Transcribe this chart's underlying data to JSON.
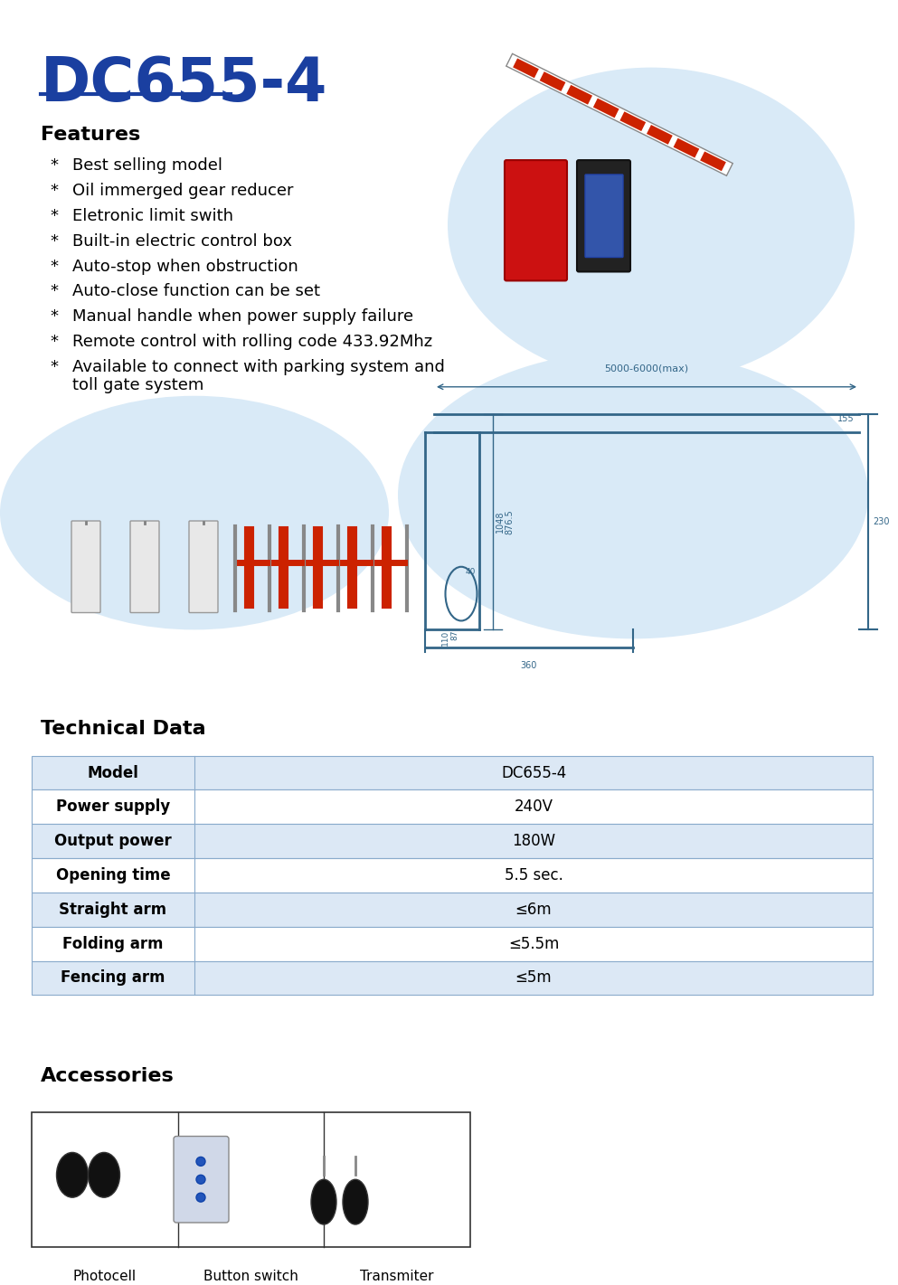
{
  "title": "DC655-4",
  "title_color": "#1a3fa0",
  "title_underline_color": "#1a3fa0",
  "features_header": "Features",
  "features": [
    "Best selling model",
    "Oil immerged gear reducer",
    "Eletronic limit swith",
    "Built-in electric control box",
    "Auto-stop when obstruction",
    "Auto-close function can be set",
    "Manual handle when power supply failure",
    "Remote control with rolling code 433.92Mhz",
    "Available to connect with parking system and\n    toll gate system"
  ],
  "tech_header": "Technical Data",
  "table_headers": [
    "Model",
    "Power supply",
    "Output power",
    "Opening time",
    "Straight arm",
    "Folding arm",
    "Fencing arm"
  ],
  "table_values": [
    "DC655-4",
    "240V",
    "180W",
    "5.5 sec.",
    "≤6m",
    "≤5.5m",
    "≤5m"
  ],
  "accessories_header": "Accessories",
  "accessories_labels": [
    "Photocell",
    "Button switch",
    "Transmiter"
  ],
  "table_header_bg": "#ccd9e8",
  "table_row_bg_odd": "#dce8f5",
  "table_row_bg_even": "#ffffff",
  "table_border_color": "#8aabcc",
  "bg_color": "#ffffff",
  "bubble_color": "#d9eaf7",
  "text_color": "#000000"
}
